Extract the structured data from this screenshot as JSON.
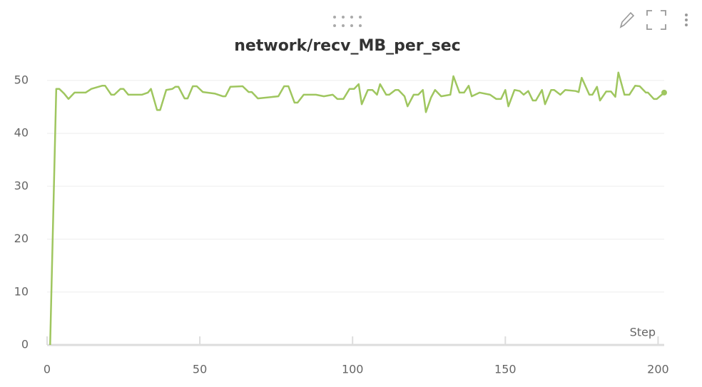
{
  "chart_data": {
    "type": "line",
    "title": "network/recv_MB_per_sec",
    "xlabel": "Step",
    "x": [
      1,
      3,
      4,
      5.6,
      7,
      9,
      12.6,
      14.5,
      18,
      19,
      21,
      22,
      24,
      25,
      26.6,
      31,
      33,
      34,
      36,
      37,
      39,
      41,
      42,
      43,
      45,
      46,
      47.7,
      49,
      51,
      55,
      57.5,
      58.4,
      60,
      64,
      66,
      67,
      69,
      75.7,
      77.6,
      79,
      81,
      82,
      84,
      88,
      90.6,
      93.5,
      95,
      97,
      99,
      100.5,
      102,
      103,
      105,
      106.5,
      108,
      109,
      111,
      112,
      114,
      115,
      117,
      118,
      120,
      121.5,
      123,
      124,
      125.7,
      127,
      129,
      132,
      133,
      135,
      136.5,
      138,
      139,
      141.6,
      145,
      147,
      148.6,
      150,
      151,
      153,
      154.7,
      156,
      157.5,
      159,
      160,
      162,
      163,
      165,
      166,
      168,
      169.6,
      173,
      174,
      175,
      177.5,
      178.5,
      180,
      181,
      183,
      184.6,
      186,
      187,
      189,
      190.6,
      192.5,
      194,
      196,
      196.7,
      198.6,
      199.6,
      202
    ],
    "values": [
      0,
      48.4,
      48.4,
      47.5,
      46.5,
      47.7,
      47.7,
      48.4,
      49,
      49,
      47.3,
      47.3,
      48.4,
      48.4,
      47.3,
      47.3,
      47.7,
      48.4,
      44.4,
      44.4,
      48.2,
      48.4,
      48.8,
      48.8,
      46.6,
      46.6,
      48.9,
      48.9,
      47.8,
      47.5,
      47,
      47,
      48.8,
      48.9,
      47.8,
      47.8,
      46.6,
      47,
      48.9,
      48.9,
      45.8,
      45.8,
      47.3,
      47.3,
      47,
      47.3,
      46.5,
      46.5,
      48.4,
      48.4,
      49.3,
      45.5,
      48.2,
      48.2,
      47.3,
      49.3,
      47.3,
      47.3,
      48.2,
      48.2,
      47,
      45.1,
      47.3,
      47.3,
      48.2,
      44,
      46.8,
      48.2,
      47,
      47.3,
      50.8,
      47.7,
      47.7,
      49,
      47,
      47.7,
      47.3,
      46.5,
      46.5,
      48.2,
      45.1,
      48.2,
      48,
      47.3,
      48,
      46.2,
      46.2,
      48.2,
      45.5,
      48.2,
      48.2,
      47.3,
      48.2,
      48,
      47.8,
      50.5,
      47.3,
      47.3,
      48.8,
      46.2,
      47.9,
      47.9,
      46.9,
      51.5,
      47.3,
      47.3,
      49,
      48.9,
      47.7,
      47.7,
      46.5,
      46.5,
      47.7
    ],
    "color": "#9fc65f",
    "xlim": [
      0,
      202
    ],
    "ylim": [
      0,
      52
    ],
    "xticks": [
      0,
      50,
      100,
      150,
      200
    ],
    "yticks": [
      0,
      10,
      20,
      30,
      40,
      50
    ],
    "grid": true
  }
}
